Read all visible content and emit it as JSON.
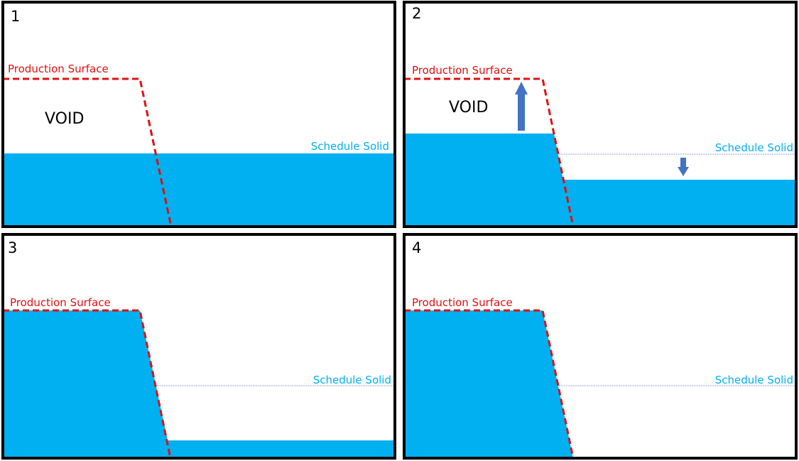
{
  "colors": {
    "solid_fill": "#00b0f0",
    "production_line": "#e01010",
    "schedule_label": "#00b0f0",
    "arrow": "#4472c4",
    "frame": "#000000"
  },
  "labels": {
    "production_surface": "Production Surface",
    "schedule_solid": "Schedule Solid",
    "void": "VOID"
  },
  "panels": [
    {
      "number": "1",
      "void_label": "VOID"
    },
    {
      "number": "2",
      "void_label": "VOID"
    },
    {
      "number": "3",
      "void_label": ""
    },
    {
      "number": "4",
      "void_label": ""
    }
  ],
  "icons": {
    "up_arrow": "arrow-up-icon",
    "down_arrow": "arrow-down-icon"
  }
}
